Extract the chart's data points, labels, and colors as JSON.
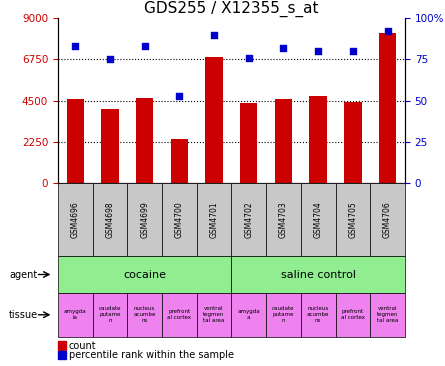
{
  "title": "GDS255 / X12355_s_at",
  "samples": [
    "GSM4696",
    "GSM4698",
    "GSM4699",
    "GSM4700",
    "GSM4701",
    "GSM4702",
    "GSM4703",
    "GSM4704",
    "GSM4705",
    "GSM4706"
  ],
  "counts": [
    4600,
    4050,
    4650,
    2400,
    6900,
    4350,
    4600,
    4750,
    4400,
    8200
  ],
  "percentiles": [
    83,
    75,
    83,
    53,
    90,
    76,
    82,
    80,
    80,
    92
  ],
  "ylim_left": [
    0,
    9000
  ],
  "ylim_right": [
    0,
    100
  ],
  "yticks_left": [
    0,
    2250,
    4500,
    6750,
    9000
  ],
  "yticks_right": [
    0,
    25,
    50,
    75,
    100
  ],
  "ytick_labels_left": [
    "0",
    "2250",
    "4500",
    "6750",
    "9000"
  ],
  "ytick_labels_right": [
    "0",
    "25",
    "50",
    "75",
    "100%"
  ],
  "hlines": [
    2250,
    4500,
    6750
  ],
  "bar_color": "#cc0000",
  "dot_color": "#0000cc",
  "agent_green_color": "#90ee90",
  "tissue_pink_color": "#ee82ee",
  "sample_bg_color": "#c8c8c8",
  "agent_row_label": "agent",
  "tissue_row_label": "tissue",
  "agent_cocaine_label": "cocaine",
  "agent_saline_label": "saline control",
  "tissues_cocaine": [
    "amygda\nla",
    "caudate\nputame\nn",
    "nucleus\nacumbe\nns",
    "prefront\nal cortex",
    "ventral\ntegmen\ntal area"
  ],
  "tissues_saline": [
    "amygda\na",
    "caudate\nputame\nn",
    "nucleus\nacumbe\nns",
    "prefront\nal cortex",
    "ventral\ntegmen\ntal area"
  ],
  "legend_count_label": "count",
  "legend_pct_label": "percentile rank within the sample",
  "title_fontsize": 11,
  "bar_width": 0.5
}
